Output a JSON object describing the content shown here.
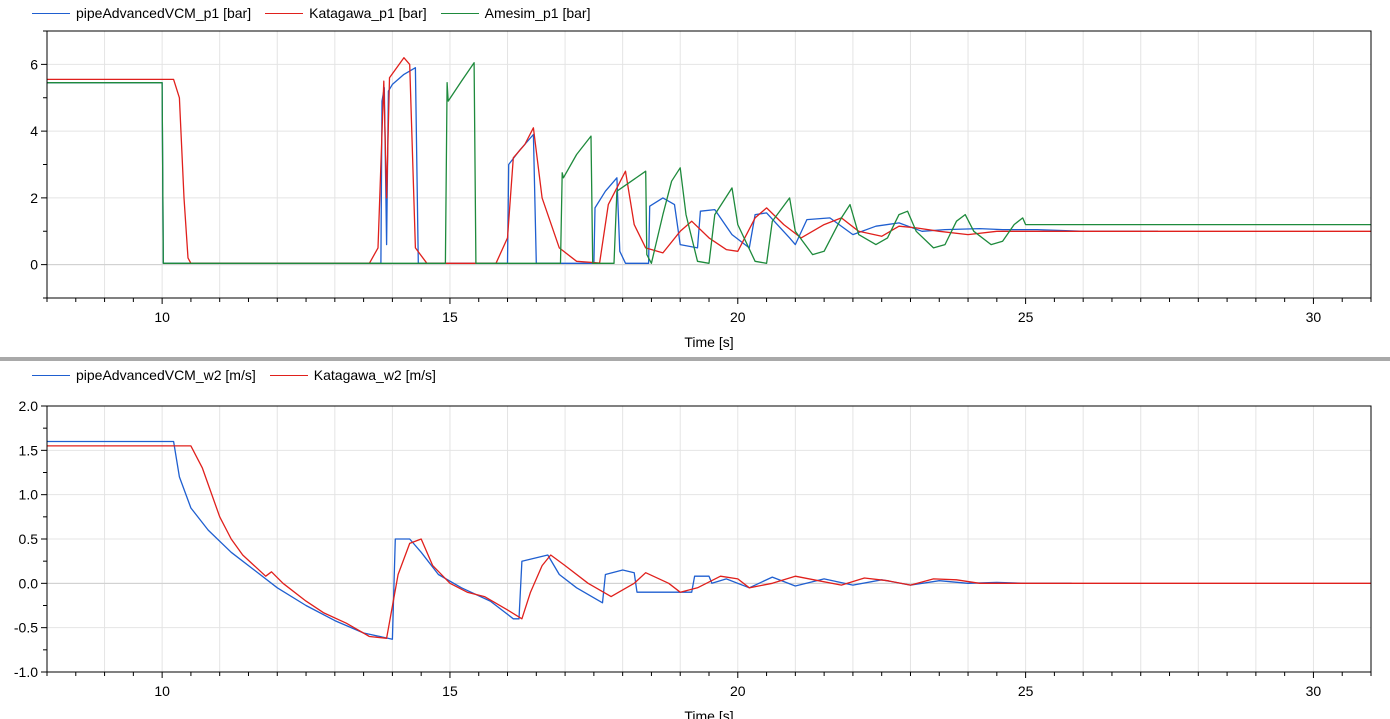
{
  "chart_data": [
    {
      "type": "line",
      "xlabel": "Time [s]",
      "ylabel": "",
      "xlim": [
        8,
        31
      ],
      "ylim": [
        -1,
        7
      ],
      "xticks": [
        10,
        15,
        20,
        25,
        30
      ],
      "yticks": [
        0,
        2,
        4,
        6
      ],
      "grid": true,
      "legend_position": "top-left",
      "series": [
        {
          "name": "pipeAdvancedVCM_p1 [bar]",
          "color": "#1f5fd0",
          "points": [
            [
              8,
              5.45
            ],
            [
              10.0,
              5.45
            ],
            [
              10.02,
              0.04
            ],
            [
              13.8,
              0.04
            ],
            [
              13.82,
              4.9
            ],
            [
              13.86,
              5.3
            ],
            [
              13.9,
              0.6
            ],
            [
              13.93,
              5.2
            ],
            [
              14.0,
              5.4
            ],
            [
              14.2,
              5.7
            ],
            [
              14.3,
              5.8
            ],
            [
              14.4,
              5.9
            ],
            [
              14.45,
              0.04
            ],
            [
              16.0,
              0.04
            ],
            [
              16.02,
              3.0
            ],
            [
              16.2,
              3.4
            ],
            [
              16.45,
              3.9
            ],
            [
              16.5,
              0.04
            ],
            [
              17.5,
              0.04
            ],
            [
              17.52,
              1.7
            ],
            [
              17.7,
              2.2
            ],
            [
              17.9,
              2.6
            ],
            [
              17.95,
              0.4
            ],
            [
              18.05,
              0.04
            ],
            [
              18.45,
              0.04
            ],
            [
              18.47,
              1.75
            ],
            [
              18.7,
              2.0
            ],
            [
              18.9,
              1.8
            ],
            [
              19.0,
              0.6
            ],
            [
              19.3,
              0.5
            ],
            [
              19.35,
              1.6
            ],
            [
              19.6,
              1.65
            ],
            [
              19.9,
              0.9
            ],
            [
              20.2,
              0.5
            ],
            [
              20.3,
              1.5
            ],
            [
              20.5,
              1.55
            ],
            [
              20.9,
              0.8
            ],
            [
              21.0,
              0.6
            ],
            [
              21.2,
              1.35
            ],
            [
              21.6,
              1.4
            ],
            [
              22.0,
              0.9
            ],
            [
              22.4,
              1.15
            ],
            [
              22.8,
              1.25
            ],
            [
              23.2,
              1.0
            ],
            [
              23.6,
              1.05
            ],
            [
              24.2,
              1.08
            ],
            [
              24.6,
              1.05
            ],
            [
              25.2,
              1.05
            ],
            [
              26.0,
              1.0
            ],
            [
              26.6,
              1.0
            ],
            [
              27.3,
              1.0
            ]
          ]
        },
        {
          "name": "Katagawa_p1 [bar]",
          "color": "#e0201c",
          "points": [
            [
              8,
              5.55
            ],
            [
              10.2,
              5.55
            ],
            [
              10.3,
              5.0
            ],
            [
              10.38,
              2.0
            ],
            [
              10.45,
              0.2
            ],
            [
              10.5,
              0.04
            ],
            [
              13.6,
              0.04
            ],
            [
              13.75,
              0.5
            ],
            [
              13.85,
              5.5
            ],
            [
              13.9,
              2.0
            ],
            [
              13.95,
              5.6
            ],
            [
              14.2,
              6.2
            ],
            [
              14.3,
              6.0
            ],
            [
              14.4,
              0.5
            ],
            [
              14.6,
              0.04
            ],
            [
              15.8,
              0.04
            ],
            [
              16.0,
              0.8
            ],
            [
              16.1,
              3.2
            ],
            [
              16.3,
              3.6
            ],
            [
              16.45,
              4.1
            ],
            [
              16.6,
              2.0
            ],
            [
              16.9,
              0.5
            ],
            [
              17.2,
              0.1
            ],
            [
              17.6,
              0.05
            ],
            [
              17.75,
              1.8
            ],
            [
              18.05,
              2.8
            ],
            [
              18.2,
              1.2
            ],
            [
              18.4,
              0.5
            ],
            [
              18.7,
              0.35
            ],
            [
              19.0,
              1.0
            ],
            [
              19.2,
              1.3
            ],
            [
              19.5,
              0.8
            ],
            [
              19.8,
              0.45
            ],
            [
              20.0,
              0.4
            ],
            [
              20.3,
              1.4
            ],
            [
              20.5,
              1.7
            ],
            [
              20.8,
              1.2
            ],
            [
              21.1,
              0.8
            ],
            [
              21.5,
              1.2
            ],
            [
              21.8,
              1.4
            ],
            [
              22.1,
              1.0
            ],
            [
              22.5,
              0.85
            ],
            [
              22.8,
              1.15
            ],
            [
              23.1,
              1.1
            ],
            [
              23.5,
              1.0
            ],
            [
              24.0,
              0.9
            ],
            [
              24.5,
              1.0
            ],
            [
              25.0,
              1.0
            ],
            [
              31,
              1.0
            ]
          ]
        },
        {
          "name": "Amesim_p1 [bar]",
          "color": "#1e8a3c",
          "points": [
            [
              8,
              5.45
            ],
            [
              10.0,
              5.45
            ],
            [
              10.02,
              0.04
            ],
            [
              14.92,
              0.04
            ],
            [
              14.95,
              5.45
            ],
            [
              14.97,
              4.9
            ],
            [
              15.2,
              5.5
            ],
            [
              15.42,
              6.05
            ],
            [
              15.45,
              0.04
            ],
            [
              16.92,
              0.04
            ],
            [
              16.95,
              2.75
            ],
            [
              16.97,
              2.6
            ],
            [
              17.2,
              3.3
            ],
            [
              17.45,
              3.85
            ],
            [
              17.48,
              0.04
            ],
            [
              17.85,
              0.04
            ],
            [
              17.9,
              2.2
            ],
            [
              18.4,
              2.8
            ],
            [
              18.42,
              0.3
            ],
            [
              18.5,
              0.04
            ],
            [
              18.7,
              1.5
            ],
            [
              18.85,
              2.5
            ],
            [
              19.0,
              2.9
            ],
            [
              19.1,
              1.5
            ],
            [
              19.3,
              0.1
            ],
            [
              19.5,
              0.04
            ],
            [
              19.6,
              1.5
            ],
            [
              19.9,
              2.3
            ],
            [
              20.0,
              1.2
            ],
            [
              20.3,
              0.1
            ],
            [
              20.5,
              0.04
            ],
            [
              20.6,
              1.3
            ],
            [
              20.9,
              2.0
            ],
            [
              21.0,
              1.0
            ],
            [
              21.3,
              0.3
            ],
            [
              21.5,
              0.4
            ],
            [
              21.8,
              1.4
            ],
            [
              21.95,
              1.8
            ],
            [
              22.1,
              0.9
            ],
            [
              22.4,
              0.6
            ],
            [
              22.6,
              0.8
            ],
            [
              22.8,
              1.5
            ],
            [
              22.95,
              1.6
            ],
            [
              23.1,
              1.0
            ],
            [
              23.4,
              0.5
            ],
            [
              23.6,
              0.6
            ],
            [
              23.8,
              1.3
            ],
            [
              23.95,
              1.5
            ],
            [
              24.1,
              1.0
            ],
            [
              24.4,
              0.6
            ],
            [
              24.6,
              0.7
            ],
            [
              24.8,
              1.2
            ],
            [
              24.95,
              1.4
            ],
            [
              25.0,
              1.2
            ],
            [
              31,
              1.2
            ]
          ]
        }
      ]
    },
    {
      "type": "line",
      "xlabel": "Time [s]",
      "ylabel": "",
      "xlim": [
        8,
        31
      ],
      "ylim": [
        -1.0,
        2.0
      ],
      "xticks": [
        10,
        15,
        20,
        25,
        30
      ],
      "yticks": [
        -1.0,
        -0.5,
        0.0,
        0.5,
        1.0,
        1.5,
        2.0
      ],
      "ytick_labels": [
        "-1.0",
        "-0.5",
        "0.0",
        "0.5",
        "1.0",
        "1.5",
        "2.0"
      ],
      "grid": true,
      "legend_position": "top-left",
      "series": [
        {
          "name": "pipeAdvancedVCM_w2 [m/s]",
          "color": "#1f5fd0",
          "points": [
            [
              8,
              1.6
            ],
            [
              10.2,
              1.6
            ],
            [
              10.3,
              1.2
            ],
            [
              10.5,
              0.85
            ],
            [
              10.8,
              0.6
            ],
            [
              11.2,
              0.35
            ],
            [
              11.6,
              0.15
            ],
            [
              12.0,
              -0.05
            ],
            [
              12.5,
              -0.25
            ],
            [
              13.0,
              -0.42
            ],
            [
              13.5,
              -0.56
            ],
            [
              14.0,
              -0.63
            ],
            [
              14.05,
              0.5
            ],
            [
              14.3,
              0.5
            ],
            [
              14.5,
              0.35
            ],
            [
              14.8,
              0.1
            ],
            [
              15.2,
              -0.05
            ],
            [
              15.7,
              -0.2
            ],
            [
              16.1,
              -0.4
            ],
            [
              16.2,
              -0.4
            ],
            [
              16.25,
              0.25
            ],
            [
              16.7,
              0.32
            ],
            [
              16.9,
              0.1
            ],
            [
              17.2,
              -0.05
            ],
            [
              17.65,
              -0.22
            ],
            [
              17.7,
              0.1
            ],
            [
              18.0,
              0.15
            ],
            [
              18.2,
              0.12
            ],
            [
              18.25,
              -0.1
            ],
            [
              19.2,
              -0.1
            ],
            [
              19.25,
              0.08
            ],
            [
              19.5,
              0.08
            ],
            [
              19.55,
              0.0
            ],
            [
              19.8,
              0.05
            ],
            [
              20.2,
              -0.05
            ],
            [
              20.6,
              0.07
            ],
            [
              21.0,
              -0.03
            ],
            [
              21.5,
              0.05
            ],
            [
              22.0,
              -0.02
            ],
            [
              22.5,
              0.04
            ],
            [
              23.0,
              -0.02
            ],
            [
              23.5,
              0.03
            ],
            [
              24.0,
              0.0
            ],
            [
              24.5,
              0.01
            ],
            [
              25.0,
              0.0
            ],
            [
              25.8,
              0.0
            ]
          ]
        },
        {
          "name": "Katagawa_w2 [m/s]",
          "color": "#e0201c",
          "points": [
            [
              8,
              1.55
            ],
            [
              10.5,
              1.55
            ],
            [
              10.7,
              1.3
            ],
            [
              11.0,
              0.75
            ],
            [
              11.2,
              0.5
            ],
            [
              11.4,
              0.32
            ],
            [
              11.6,
              0.2
            ],
            [
              11.8,
              0.08
            ],
            [
              11.9,
              0.13
            ],
            [
              12.1,
              0.0
            ],
            [
              12.5,
              -0.2
            ],
            [
              12.8,
              -0.33
            ],
            [
              13.2,
              -0.45
            ],
            [
              13.6,
              -0.6
            ],
            [
              13.9,
              -0.62
            ],
            [
              14.1,
              0.1
            ],
            [
              14.3,
              0.45
            ],
            [
              14.5,
              0.5
            ],
            [
              14.7,
              0.2
            ],
            [
              15.0,
              0.0
            ],
            [
              15.3,
              -0.1
            ],
            [
              15.6,
              -0.15
            ],
            [
              16.0,
              -0.3
            ],
            [
              16.25,
              -0.4
            ],
            [
              16.4,
              -0.1
            ],
            [
              16.6,
              0.2
            ],
            [
              16.75,
              0.32
            ],
            [
              17.0,
              0.2
            ],
            [
              17.4,
              0.0
            ],
            [
              17.8,
              -0.15
            ],
            [
              18.2,
              0.0
            ],
            [
              18.4,
              0.12
            ],
            [
              18.8,
              0.0
            ],
            [
              19.0,
              -0.1
            ],
            [
              19.3,
              -0.05
            ],
            [
              19.7,
              0.08
            ],
            [
              20.0,
              0.05
            ],
            [
              20.2,
              -0.05
            ],
            [
              20.6,
              0.0
            ],
            [
              21.0,
              0.08
            ],
            [
              21.4,
              0.03
            ],
            [
              21.8,
              -0.02
            ],
            [
              22.2,
              0.06
            ],
            [
              22.6,
              0.03
            ],
            [
              23.0,
              -0.02
            ],
            [
              23.4,
              0.05
            ],
            [
              23.8,
              0.04
            ],
            [
              24.2,
              0.0
            ],
            [
              25.0,
              0.0
            ],
            [
              31,
              0.0
            ]
          ]
        }
      ]
    }
  ]
}
